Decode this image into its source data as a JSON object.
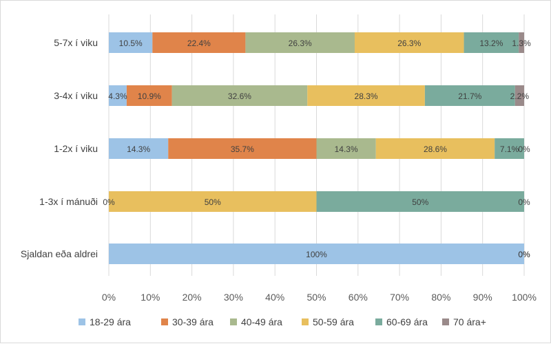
{
  "chart_data": {
    "type": "bar",
    "orientation": "horizontal",
    "stacked": "percent",
    "title": "",
    "xlabel": "",
    "ylabel": "",
    "xlim": [
      0,
      100
    ],
    "x_ticks": [
      "0%",
      "10%",
      "20%",
      "30%",
      "40%",
      "50%",
      "60%",
      "70%",
      "80%",
      "90%",
      "100%"
    ],
    "grid": "vertical",
    "legend_position": "bottom",
    "categories": [
      "5-7x í viku",
      "3-4x í viku",
      "1-2x í viku",
      "1-3x í mánuði",
      "Sjaldan eða aldrei"
    ],
    "series": [
      {
        "name": "18-29 ára",
        "color": "#9dc3e6",
        "values": [
          10.5,
          4.3,
          14.3,
          0,
          100
        ],
        "labels": [
          "10.5%",
          "4.3%",
          "14.3%",
          "0%",
          "100%"
        ]
      },
      {
        "name": "30-39 ára",
        "color": "#e0844a",
        "values": [
          22.4,
          10.9,
          35.7,
          0,
          0
        ],
        "labels": [
          "22.4%",
          "10.9%",
          "35.7%",
          "",
          ""
        ]
      },
      {
        "name": "40-49 ára",
        "color": "#a9b98e",
        "values": [
          26.3,
          32.6,
          14.3,
          0,
          0
        ],
        "labels": [
          "26.3%",
          "32.6%",
          "14.3%",
          "",
          ""
        ]
      },
      {
        "name": "50-59 ára",
        "color": "#e8bf5e",
        "values": [
          26.3,
          28.3,
          28.6,
          50,
          0
        ],
        "labels": [
          "26.3%",
          "28.3%",
          "28.6%",
          "50%",
          ""
        ]
      },
      {
        "name": "60-69 ára",
        "color": "#7aab9d",
        "values": [
          13.2,
          21.7,
          7.1,
          50,
          0
        ],
        "labels": [
          "13.2%",
          "21.7%",
          "7.1%",
          "50%",
          "0%"
        ]
      },
      {
        "name": "70 ára+",
        "color": "#9a8a8a",
        "values": [
          1.3,
          2.2,
          0,
          0,
          0
        ],
        "labels": [
          "1.3%",
          "2.2%",
          "0%",
          "0%",
          "0%"
        ]
      }
    ]
  }
}
